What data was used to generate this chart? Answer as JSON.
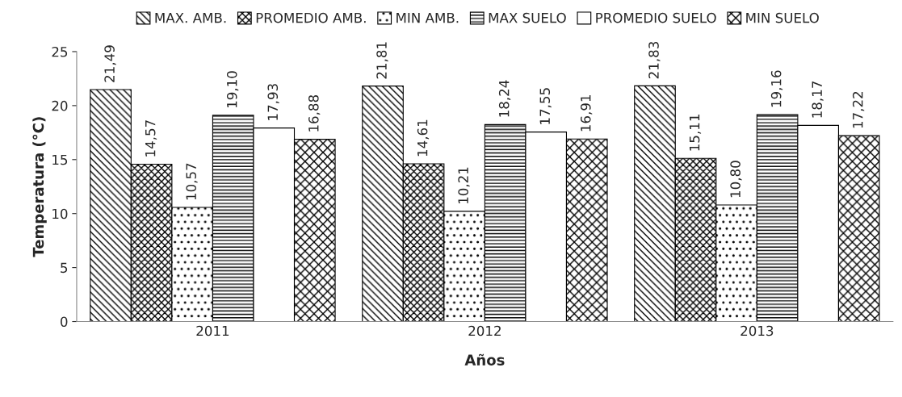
{
  "chart_data": {
    "type": "bar",
    "xlabel": "Años",
    "ylabel": "Temperatura (°C)",
    "categories": [
      "2011",
      "2012",
      "2013"
    ],
    "series": [
      {
        "name": "MAX. AMB.",
        "color": "#000000",
        "values": [
          21.49,
          21.81,
          21.83
        ],
        "value_labels": [
          "21,49",
          "21,81",
          "21,83"
        ]
      },
      {
        "name": "PROMEDIO AMB.",
        "color": "#000000",
        "values": [
          14.57,
          14.61,
          15.11
        ],
        "value_labels": [
          "14,57",
          "14,61",
          "15,11"
        ]
      },
      {
        "name": "MIN AMB.",
        "color": "#000000",
        "values": [
          10.57,
          10.21,
          10.8
        ],
        "value_labels": [
          "10,57",
          "10,21",
          "10,80"
        ]
      },
      {
        "name": "MAX SUELO",
        "color": "#000000",
        "values": [
          19.1,
          18.24,
          19.16
        ],
        "value_labels": [
          "19,10",
          "18,24",
          "19,16"
        ]
      },
      {
        "name": "PROMEDIO SUELO",
        "color": "#ffffff",
        "values": [
          17.93,
          17.55,
          18.17
        ],
        "value_labels": [
          "17,93",
          "17,55",
          "18,17"
        ]
      },
      {
        "name": "MIN SUELO",
        "color": "#000000",
        "values": [
          16.88,
          16.91,
          17.22
        ],
        "value_labels": [
          "16,88",
          "16,91",
          "17,22"
        ]
      }
    ],
    "ylim": [
      0,
      25
    ],
    "yticks": [
      0,
      5,
      10,
      15,
      20,
      25
    ],
    "grid": false,
    "legend": "top"
  }
}
